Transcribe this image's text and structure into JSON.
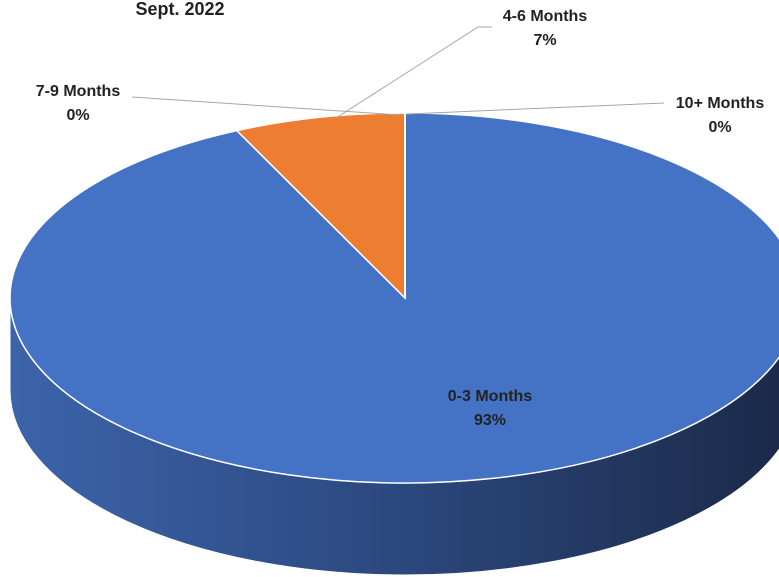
{
  "chart_data": {
    "type": "pie",
    "title": "Sept. 2022",
    "categories": [
      "0-3 Months",
      "4-6 Months",
      "7-9 Months",
      "10+ Months"
    ],
    "values": [
      93,
      7,
      0,
      0
    ],
    "value_labels": [
      "93%",
      "7%",
      "0%",
      "0%"
    ],
    "colors": [
      "#4472c4",
      "#ed7d31",
      "#a5a5a5",
      "#ffc000"
    ]
  }
}
